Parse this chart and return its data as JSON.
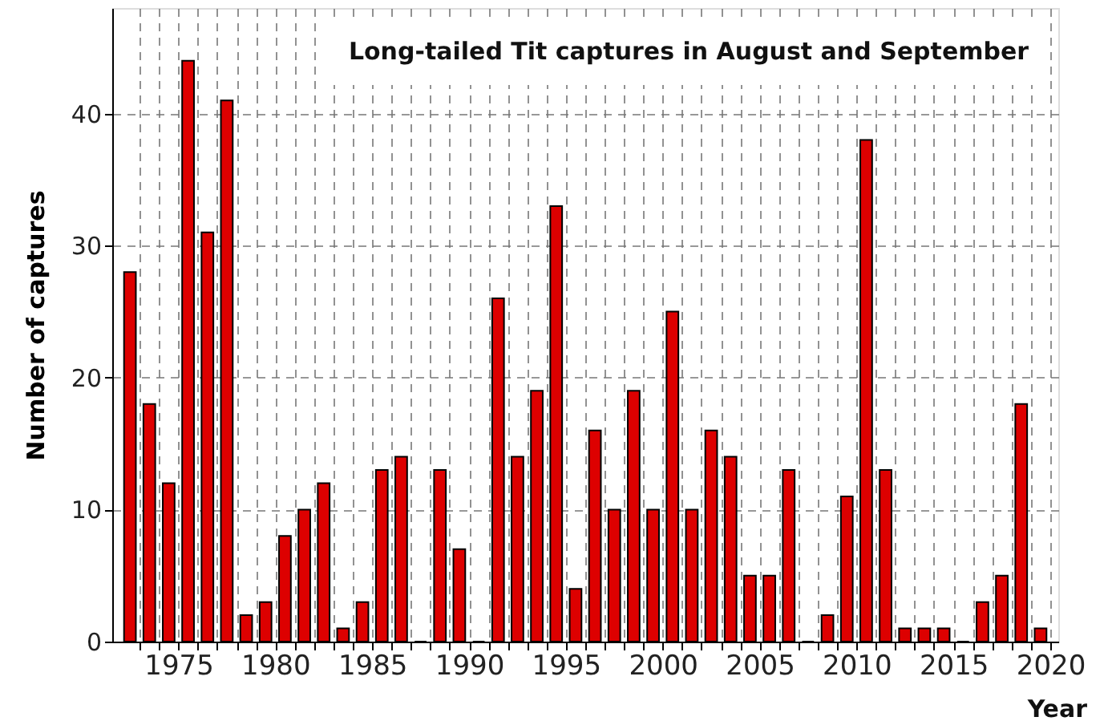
{
  "chart_data": {
    "type": "bar",
    "title": "Long-tailed Tit captures in August and September",
    "xlabel": "Year",
    "ylabel": "Number of captures",
    "x": [
      1972.5,
      1973.5,
      1974.5,
      1975.5,
      1976.5,
      1977.5,
      1978.5,
      1979.5,
      1980.5,
      1981.5,
      1982.5,
      1983.5,
      1984.5,
      1985.5,
      1986.5,
      1987.5,
      1988.5,
      1989.5,
      1990.5,
      1991.5,
      1992.5,
      1993.5,
      1994.5,
      1995.5,
      1996.5,
      1997.5,
      1998.5,
      1999.5,
      2000.5,
      2001.5,
      2002.5,
      2003.5,
      2004.5,
      2005.5,
      2006.5,
      2007.5,
      2008.5,
      2009.5,
      2010.5,
      2011.5,
      2012.5,
      2013.5,
      2014.5,
      2015.5,
      2016.5,
      2017.5,
      2018.5,
      2019.5
    ],
    "values": [
      28,
      18,
      12,
      44,
      31,
      41,
      2,
      3,
      8,
      10,
      12,
      1,
      3,
      13,
      14,
      0,
      13,
      7,
      0,
      26,
      14,
      19,
      33,
      4,
      16,
      10,
      19,
      10,
      25,
      10,
      16,
      14,
      5,
      5,
      13,
      0,
      2,
      11,
      38,
      13,
      1,
      1,
      1,
      0,
      3,
      5,
      18,
      1
    ],
    "color": "#dd0000",
    "xlim": [
      1972,
      2020
    ],
    "xticks": [
      {
        "value": 1973,
        "label": null
      },
      {
        "value": 1974,
        "label": null
      },
      1975,
      {
        "value": 1976,
        "label": null
      },
      {
        "value": 1977,
        "label": null
      },
      {
        "value": 1978,
        "label": null
      },
      {
        "value": 1979,
        "label": null
      },
      1980,
      {
        "value": 1981,
        "label": null
      },
      {
        "value": 1982,
        "label": null
      },
      {
        "value": 1983,
        "label": null
      },
      {
        "value": 1984,
        "label": null
      },
      1985,
      {
        "value": 1986,
        "label": null
      },
      {
        "value": 1987,
        "label": null
      },
      {
        "value": 1988,
        "label": null
      },
      {
        "value": 1989,
        "label": null
      },
      1990,
      {
        "value": 1991,
        "label": null
      },
      {
        "value": 1992,
        "label": null
      },
      {
        "value": 1993,
        "label": null
      },
      {
        "value": 1994,
        "label": null
      },
      1995,
      {
        "value": 1996,
        "label": null
      },
      {
        "value": 1997,
        "label": null
      },
      {
        "value": 1998,
        "label": null
      },
      {
        "value": 1999,
        "label": null
      },
      2000,
      {
        "value": 2001,
        "label": null
      },
      {
        "value": 2002,
        "label": null
      },
      {
        "value": 2003,
        "label": null
      },
      {
        "value": 2004,
        "label": null
      },
      2005,
      {
        "value": 2006,
        "label": null
      },
      {
        "value": 2007,
        "label": null
      },
      {
        "value": 2008,
        "label": null
      },
      {
        "value": 2009,
        "label": null
      },
      2010,
      {
        "value": 2011,
        "label": null
      },
      {
        "value": 2012,
        "label": null
      },
      {
        "value": 2013,
        "label": null
      },
      {
        "value": 2014,
        "label": null
      },
      2015,
      {
        "value": 2016,
        "label": null
      },
      {
        "value": 2017,
        "label": null
      },
      {
        "value": 2018,
        "label": null
      },
      {
        "value": 2019,
        "label": null
      },
      2020
    ],
    "ylim": [
      0,
      48
    ],
    "yticks": [
      0,
      10,
      20,
      30,
      40
    ],
    "grid": true
  }
}
